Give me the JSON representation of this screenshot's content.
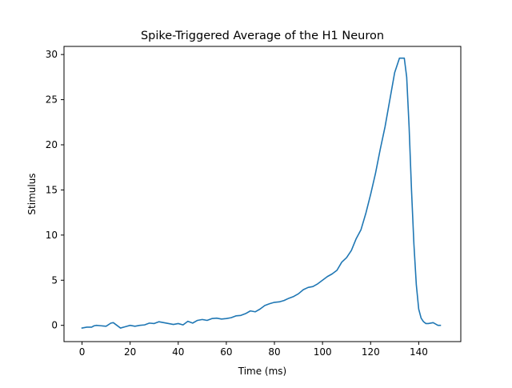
{
  "chart_data": {
    "type": "line",
    "title": "Spike-Triggered Average of the H1 Neuron",
    "xlabel": "Time (ms)",
    "ylabel": "Stimulus",
    "xlim": [
      -7.5,
      157.5
    ],
    "ylim": [
      -1.8,
      30.9
    ],
    "x_ticks": [
      0,
      20,
      40,
      60,
      80,
      100,
      120,
      140
    ],
    "y_ticks": [
      0,
      5,
      10,
      15,
      20,
      25,
      30
    ],
    "grid": false,
    "legend": "none",
    "series": [
      {
        "color": "#1f77b4",
        "x": [
          0,
          2,
          4,
          5,
          6,
          8,
          10,
          12,
          13,
          14,
          16,
          18,
          20,
          22,
          24,
          26,
          28,
          30,
          32,
          34,
          36,
          38,
          40,
          42,
          44,
          46,
          48,
          50,
          52,
          54,
          56,
          58,
          60,
          62,
          64,
          66,
          68,
          70,
          72,
          74,
          76,
          78,
          80,
          82,
          84,
          86,
          88,
          90,
          92,
          94,
          96,
          98,
          100,
          102,
          104,
          106,
          108,
          110,
          112,
          114,
          116,
          118,
          120,
          122,
          124,
          126,
          128,
          130,
          132,
          134,
          135,
          136,
          137,
          138,
          139,
          140,
          141,
          142,
          143,
          144,
          146,
          148,
          149
        ],
        "y": [
          -0.3,
          -0.2,
          -0.2,
          -0.05,
          0.0,
          -0.05,
          -0.1,
          0.25,
          0.3,
          0.1,
          -0.3,
          -0.15,
          0.0,
          -0.1,
          0.0,
          0.05,
          0.25,
          0.2,
          0.4,
          0.3,
          0.2,
          0.1,
          0.2,
          0.05,
          0.45,
          0.25,
          0.55,
          0.65,
          0.55,
          0.75,
          0.8,
          0.7,
          0.75,
          0.85,
          1.05,
          1.1,
          1.3,
          1.6,
          1.5,
          1.8,
          2.2,
          2.4,
          2.55,
          2.6,
          2.75,
          3.0,
          3.2,
          3.5,
          3.95,
          4.2,
          4.3,
          4.6,
          5.0,
          5.4,
          5.7,
          6.1,
          7.0,
          7.5,
          8.3,
          9.6,
          10.6,
          12.4,
          14.5,
          16.8,
          19.5,
          22.0,
          25.0,
          28.0,
          29.6,
          29.6,
          27.5,
          22.0,
          15.0,
          9.0,
          4.5,
          1.8,
          0.8,
          0.4,
          0.2,
          0.2,
          0.3,
          0.0,
          0.0
        ]
      }
    ]
  }
}
